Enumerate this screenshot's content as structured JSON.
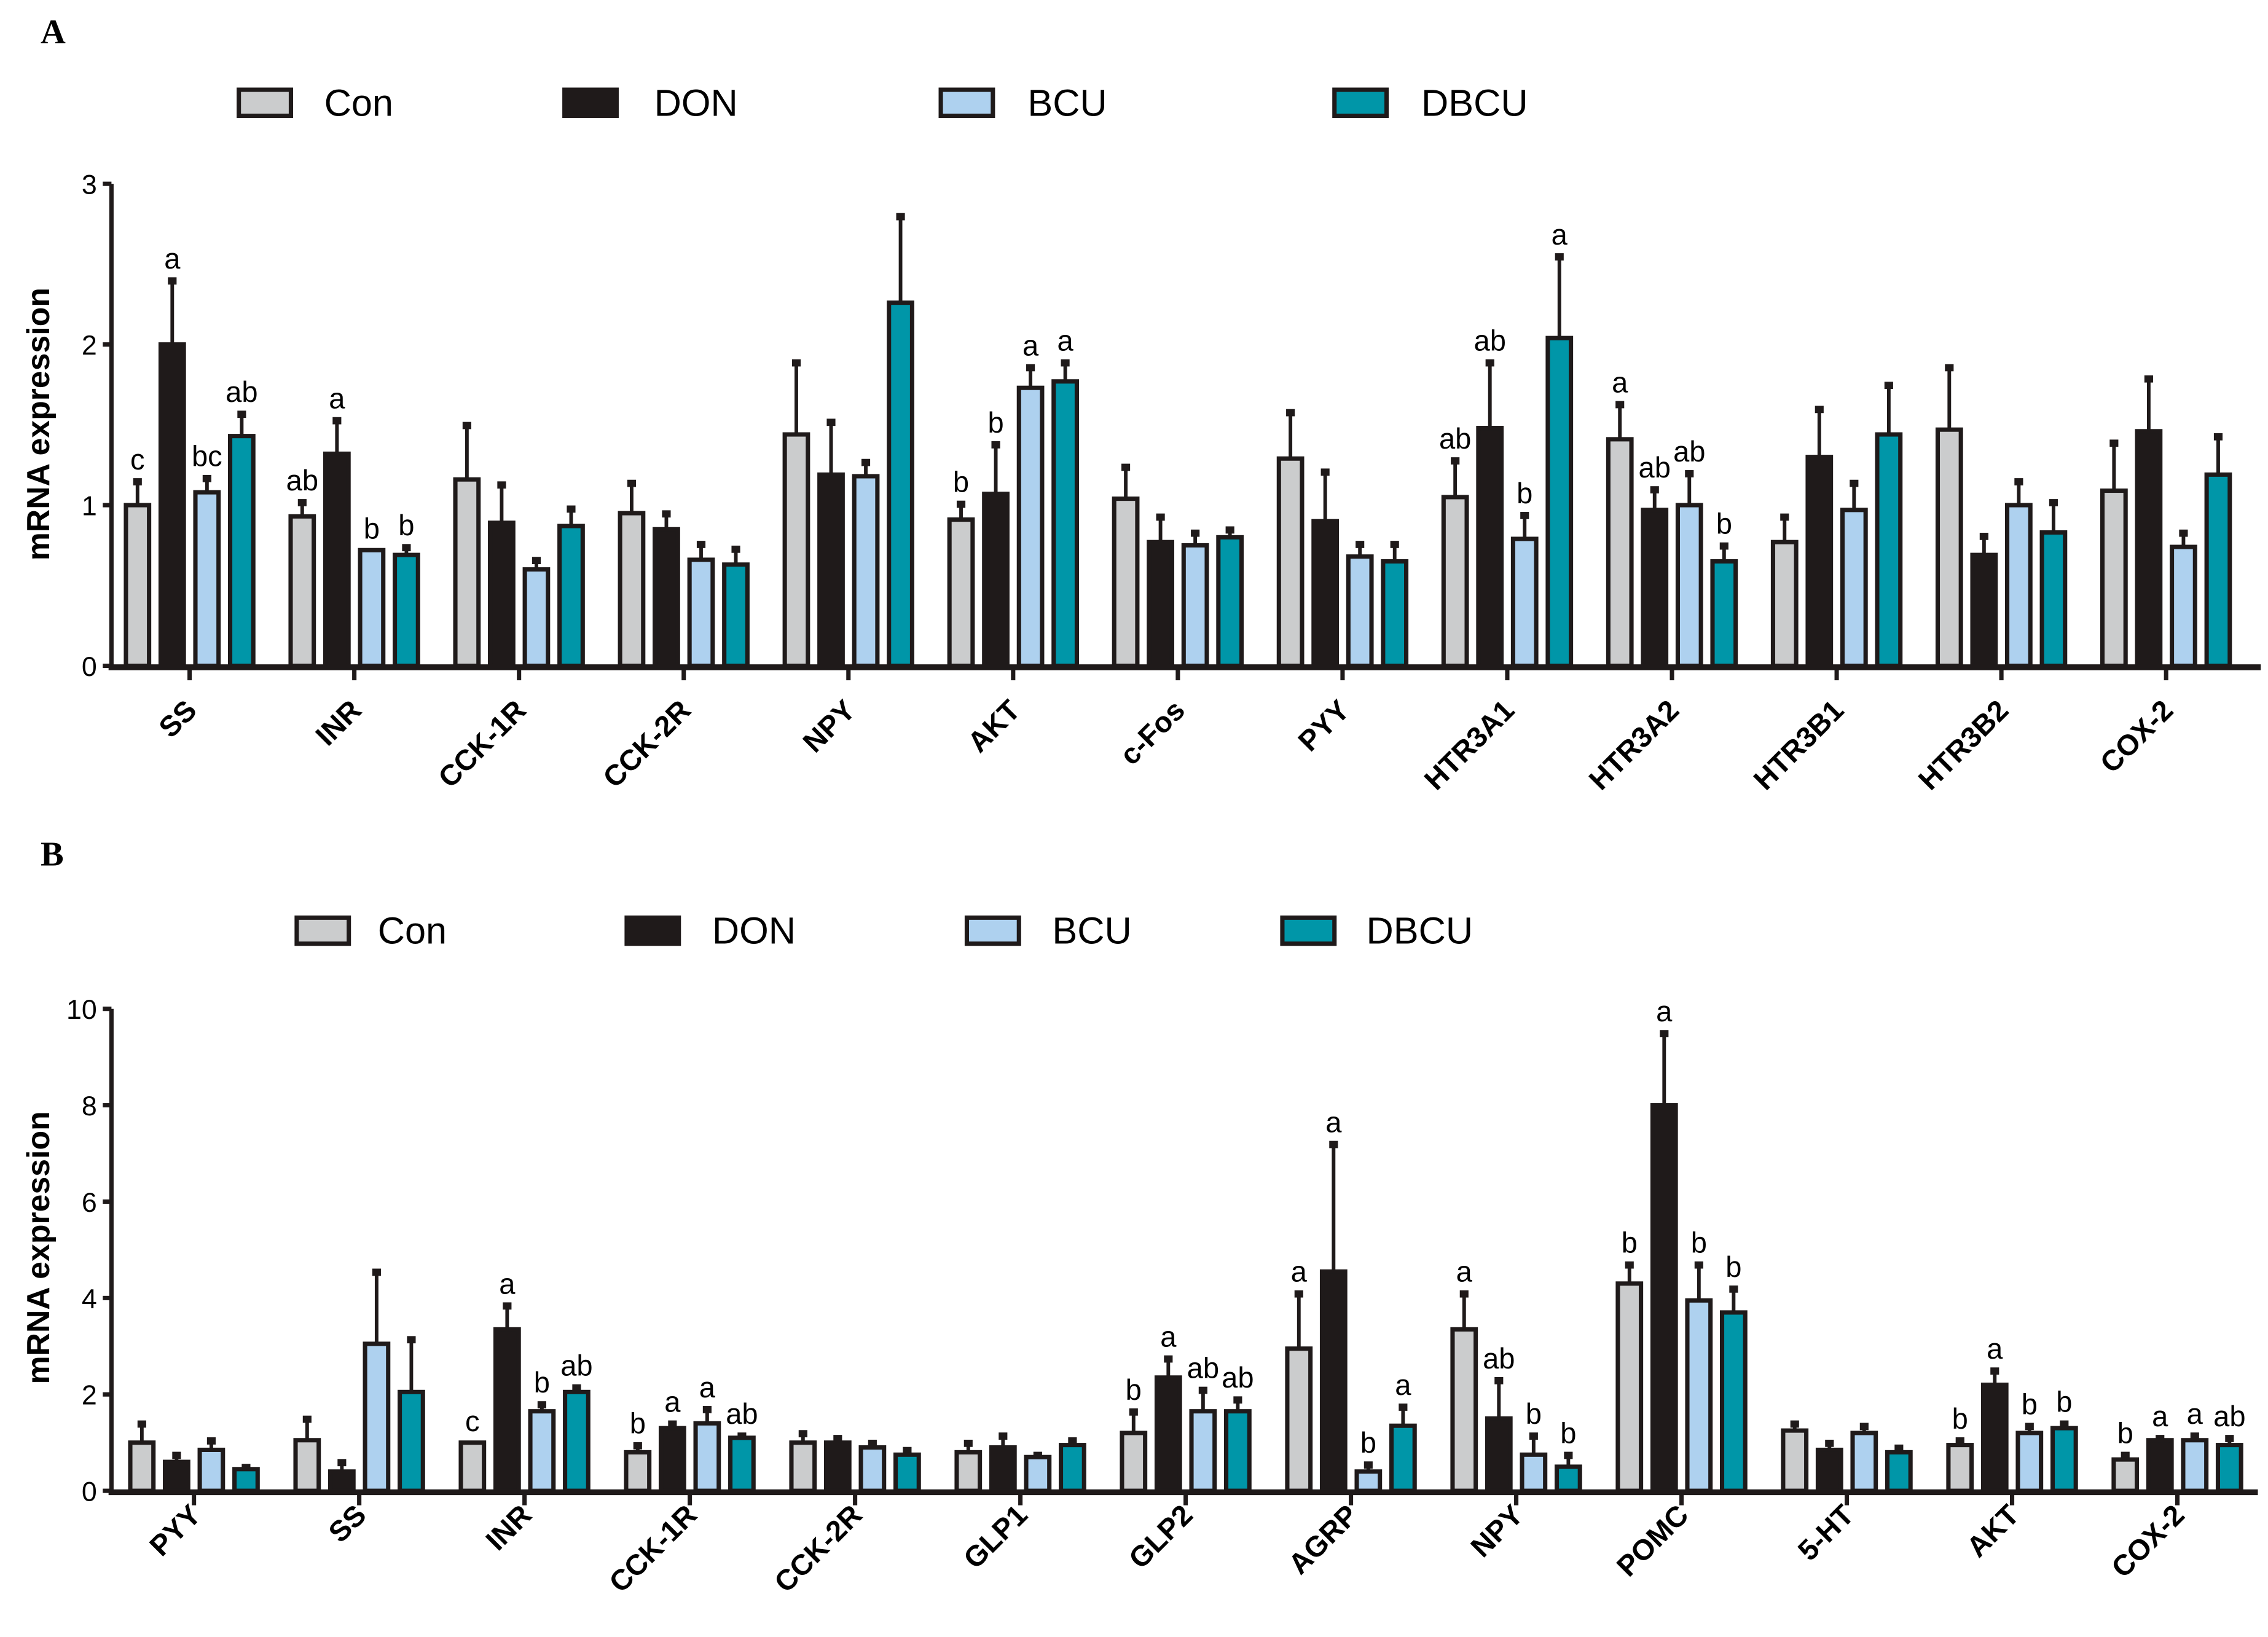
{
  "colors": {
    "Con": "#cbcccd",
    "DON": "#1f1a1a",
    "BCU": "#aed1ef",
    "DBCU": "#0096a8"
  },
  "chart_data": [
    {
      "type": "bar",
      "panel": "A",
      "ylabel": "mRNA expression",
      "ylim": [
        0,
        3
      ],
      "yticks": [
        0,
        1,
        2,
        3
      ],
      "legend": "top",
      "categories": [
        "SS",
        "INR",
        "CCK-1R",
        "CCK-2R",
        "NPY",
        "AKT",
        "c-Fos",
        "PYY",
        "HTR3A1",
        "HTR3A2",
        "HTR3B1",
        "HTR3B2",
        "COX-2"
      ],
      "series": [
        {
          "name": "Con",
          "values": [
            1.0,
            0.93,
            1.16,
            0.95,
            1.44,
            0.91,
            1.04,
            1.29,
            1.05,
            1.41,
            0.77,
            1.47,
            1.09
          ],
          "err": [
            0.15,
            0.09,
            0.34,
            0.19,
            0.45,
            0.1,
            0.2,
            0.29,
            0.23,
            0.22,
            0.16,
            0.39,
            0.3
          ],
          "letters": [
            "c",
            "ab",
            "",
            "",
            "",
            "b",
            "",
            "",
            "ab",
            "a",
            "",
            "",
            ""
          ]
        },
        {
          "name": "DON",
          "values": [
            2.0,
            1.32,
            0.89,
            0.85,
            1.19,
            1.07,
            0.77,
            0.9,
            1.48,
            0.97,
            1.3,
            0.69,
            1.46
          ],
          "err": [
            0.4,
            0.21,
            0.24,
            0.1,
            0.33,
            0.31,
            0.16,
            0.31,
            0.41,
            0.13,
            0.3,
            0.12,
            0.33
          ],
          "letters": [
            "a",
            "a",
            "",
            "",
            "",
            "b",
            "",
            "",
            "ab",
            "ab",
            "",
            "",
            ""
          ]
        },
        {
          "name": "BCU",
          "values": [
            1.08,
            0.72,
            0.6,
            0.66,
            1.18,
            1.73,
            0.75,
            0.68,
            0.79,
            1.0,
            0.97,
            1.0,
            0.74
          ],
          "err": [
            0.09,
            0.0,
            0.06,
            0.1,
            0.09,
            0.13,
            0.08,
            0.08,
            0.15,
            0.2,
            0.17,
            0.15,
            0.09
          ],
          "letters": [
            "bc",
            "b",
            "",
            "",
            "",
            "a",
            "",
            "",
            "b",
            "ab",
            "",
            "",
            ""
          ]
        },
        {
          "name": "DBCU",
          "values": [
            1.43,
            0.69,
            0.87,
            0.63,
            2.26,
            1.77,
            0.8,
            0.65,
            2.04,
            0.65,
            1.44,
            0.83,
            1.19
          ],
          "err": [
            0.14,
            0.05,
            0.11,
            0.1,
            0.54,
            0.12,
            0.05,
            0.11,
            0.51,
            0.1,
            0.31,
            0.19,
            0.24
          ],
          "letters": [
            "ab",
            "b",
            "",
            "",
            "",
            "a",
            "",
            "",
            "a",
            "b",
            "",
            "",
            ""
          ]
        }
      ]
    },
    {
      "type": "bar",
      "panel": "B",
      "ylabel": "mRNA expression",
      "ylim": [
        0,
        10
      ],
      "yticks": [
        0,
        2,
        4,
        6,
        8,
        10
      ],
      "legend": "top",
      "categories": [
        "PYY",
        "SS",
        "INR",
        "CCK-1R",
        "CCK-2R",
        "GLP1",
        "GLP2",
        "AGRP",
        "NPY",
        "POMC",
        "5-HT",
        "AKT",
        "COX-2"
      ],
      "series": [
        {
          "name": "Con",
          "values": [
            1.0,
            1.05,
            1.0,
            0.8,
            1.0,
            0.8,
            1.2,
            2.95,
            3.35,
            4.3,
            1.25,
            0.95,
            0.65
          ],
          "err": [
            0.4,
            0.45,
            0.0,
            0.15,
            0.2,
            0.2,
            0.45,
            1.15,
            0.75,
            0.4,
            0.15,
            0.1,
            0.1
          ],
          "letters": [
            "",
            "",
            "c",
            "b",
            "",
            "",
            "b",
            "a",
            "a",
            "b",
            "",
            "b",
            "b"
          ]
        },
        {
          "name": "DON",
          "values": [
            0.6,
            0.4,
            3.35,
            1.3,
            1.0,
            0.9,
            2.35,
            4.55,
            1.5,
            8.0,
            0.85,
            2.2,
            1.05
          ],
          "err": [
            0.15,
            0.2,
            0.5,
            0.1,
            0.1,
            0.25,
            0.4,
            2.65,
            0.8,
            1.5,
            0.15,
            0.3,
            0.05
          ],
          "letters": [
            "",
            "",
            "a",
            "a",
            "",
            "",
            "a",
            "a",
            "ab",
            "a",
            "",
            "a",
            "a"
          ]
        },
        {
          "name": "BCU",
          "values": [
            0.85,
            3.05,
            1.65,
            1.4,
            0.9,
            0.7,
            1.65,
            0.4,
            0.75,
            3.95,
            1.2,
            1.2,
            1.05
          ],
          "err": [
            0.2,
            1.5,
            0.15,
            0.3,
            0.1,
            0.05,
            0.45,
            0.15,
            0.4,
            0.75,
            0.15,
            0.15,
            0.1
          ],
          "letters": [
            "",
            "",
            "b",
            "a",
            "",
            "",
            "ab",
            "b",
            "b",
            "b",
            "",
            "b",
            "a"
          ]
        },
        {
          "name": "DBCU",
          "values": [
            0.45,
            2.05,
            2.05,
            1.1,
            0.75,
            0.95,
            1.65,
            1.35,
            0.5,
            3.7,
            0.8,
            1.3,
            0.95
          ],
          "err": [
            0.05,
            1.1,
            0.1,
            0.05,
            0.1,
            0.1,
            0.25,
            0.4,
            0.25,
            0.5,
            0.1,
            0.1,
            0.15
          ],
          "letters": [
            "",
            "",
            "ab",
            "ab",
            "",
            "",
            "ab",
            "a",
            "b",
            "b",
            "",
            "b",
            "ab"
          ]
        }
      ]
    }
  ]
}
